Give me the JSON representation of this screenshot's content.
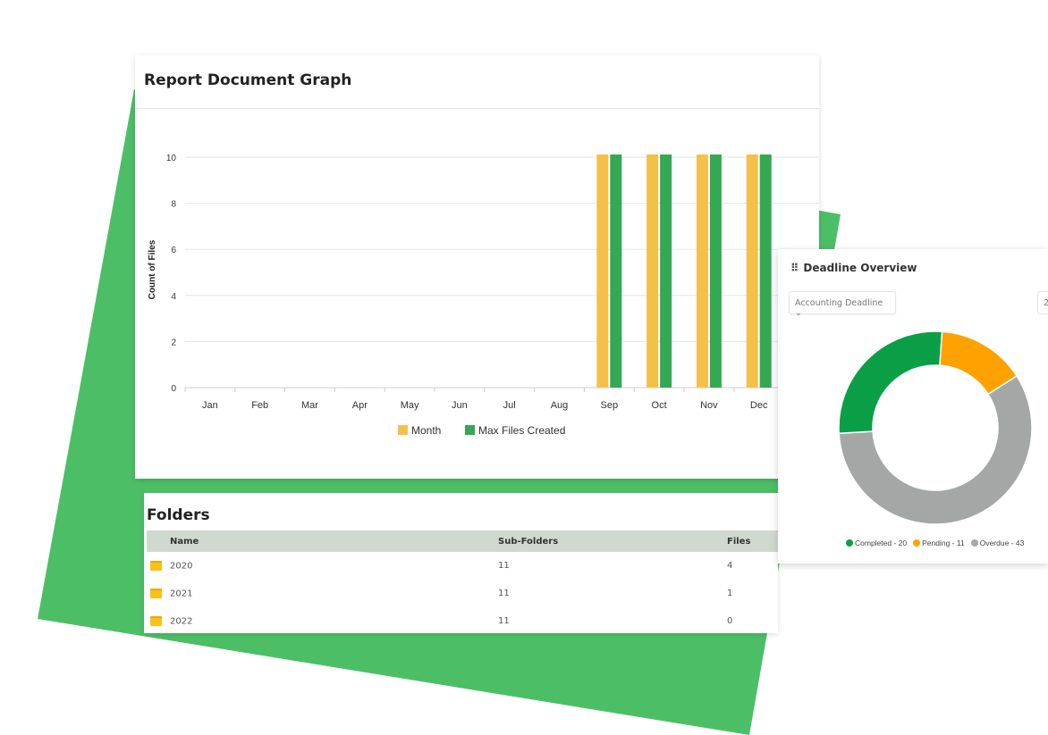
{
  "report": {
    "title": "Report Document Graph"
  },
  "chart_data": {
    "type": "bar",
    "title": "Report Document Graph",
    "ylabel": "Count of Files",
    "xlabel": "",
    "categories": [
      "Jan",
      "Feb",
      "Mar",
      "Apr",
      "May",
      "Jun",
      "Jul",
      "Aug",
      "Sep",
      "Oct",
      "Nov",
      "Dec"
    ],
    "series": [
      {
        "name": "Month",
        "color": "#f5c04a",
        "values": [
          0,
          0,
          0,
          0,
          0,
          0,
          0,
          0,
          10,
          10,
          10,
          10
        ]
      },
      {
        "name": "Max Files Created",
        "color": "#34a853",
        "values": [
          0,
          0,
          0,
          0,
          0,
          0,
          0,
          0,
          10,
          10,
          10,
          10
        ]
      }
    ],
    "yticks": [
      "0",
      "2",
      "4",
      "6",
      "8",
      "10"
    ],
    "ylim": [
      0,
      10
    ],
    "grid": true,
    "legend": "bottom"
  },
  "folders": {
    "title": "Folders",
    "columns": [
      "Name",
      "Sub-Folders",
      "Files"
    ],
    "rows": [
      {
        "name": "2020",
        "sub": "11",
        "files": "4"
      },
      {
        "name": "2021",
        "sub": "11",
        "files": "1"
      },
      {
        "name": "2022",
        "sub": "11",
        "files": "0"
      }
    ]
  },
  "deadline": {
    "title": "Deadline Overview",
    "select": "Accounting Deadline",
    "select2": "2",
    "segments": [
      {
        "label": "Pending - 11",
        "value": 11,
        "color": "#ffa200"
      },
      {
        "label": "Overdue - 43",
        "value": 43,
        "color": "#a5a7a7"
      },
      {
        "label": "Completed - 20",
        "value": 20,
        "color": "#0a9f46"
      }
    ],
    "legend": [
      "Completed - 20",
      "Pending - 11",
      "Overdue - 43"
    ]
  }
}
